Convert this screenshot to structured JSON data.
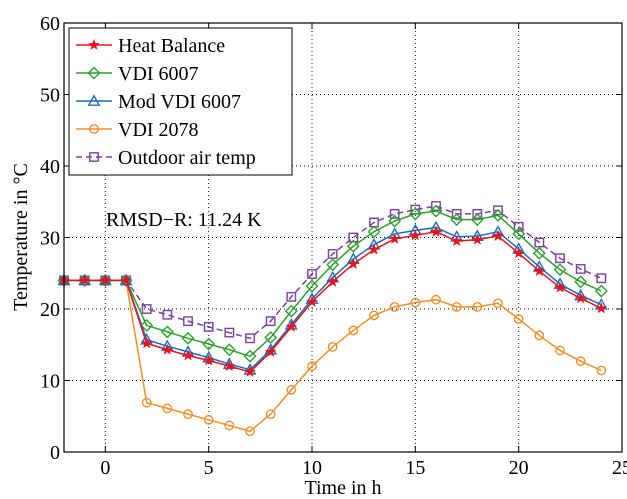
{
  "chart_data": {
    "type": "line",
    "xlabel": "Time in h",
    "ylabel": "Temperature in °C",
    "xlim": [
      -2,
      25
    ],
    "ylim": [
      0,
      60
    ],
    "xticks": [
      0,
      5,
      10,
      15,
      20,
      25
    ],
    "yticks": [
      0,
      10,
      20,
      30,
      40,
      50,
      60
    ],
    "grid": "dotted, horizontal and vertical",
    "legend_position": "top-left",
    "annotation": "RMSD−R: 11.24 K",
    "x": [
      -2,
      -1,
      0,
      1,
      2,
      3,
      4,
      5,
      6,
      7,
      8,
      9,
      10,
      11,
      12,
      13,
      14,
      15,
      16,
      17,
      18,
      19,
      20,
      21,
      22,
      23,
      24
    ],
    "series": [
      {
        "name": "Heat Balance",
        "color": "#e8141b",
        "marker": "star",
        "dashed": false,
        "values": [
          24,
          24,
          24,
          24,
          15.2,
          14.3,
          13.5,
          12.8,
          12.0,
          11.2,
          14.0,
          17.5,
          21.0,
          23.8,
          26.3,
          28.3,
          29.8,
          30.3,
          30.8,
          29.5,
          29.7,
          30.2,
          27.8,
          25.3,
          23.0,
          21.5,
          20.1
        ]
      },
      {
        "name": "VDI 6007",
        "color": "#2ca02c",
        "marker": "diamond",
        "dashed": false,
        "values": [
          24,
          24,
          24,
          24,
          17.7,
          16.8,
          15.9,
          15.1,
          14.3,
          13.4,
          16.0,
          19.7,
          23.2,
          26.2,
          28.8,
          30.8,
          32.3,
          33.3,
          33.7,
          32.5,
          32.5,
          33.1,
          30.5,
          27.8,
          25.5,
          23.8,
          22.5
        ]
      },
      {
        "name": "Mod VDI 6007",
        "color": "#1f6bbf",
        "marker": "triangle",
        "dashed": false,
        "values": [
          24,
          24,
          24,
          24,
          15.7,
          14.8,
          14.0,
          13.2,
          12.3,
          11.5,
          14.3,
          17.8,
          21.4,
          24.4,
          27.0,
          29.0,
          30.5,
          31.0,
          31.4,
          30.1,
          30.2,
          30.8,
          28.4,
          25.9,
          23.5,
          21.9,
          20.6
        ]
      },
      {
        "name": "VDI 2078",
        "color": "#f28e2b",
        "marker": "circle",
        "dashed": false,
        "values": [
          24,
          24,
          24,
          24,
          6.9,
          6.1,
          5.3,
          4.5,
          3.7,
          2.9,
          5.3,
          8.7,
          12.0,
          14.7,
          17.0,
          19.1,
          20.3,
          20.9,
          21.3,
          20.3,
          20.3,
          20.8,
          18.6,
          16.3,
          14.2,
          12.7,
          11.4
        ]
      },
      {
        "name": "Outdoor air temp",
        "color": "#7b3fa0",
        "marker": "square",
        "dashed": true,
        "values": [
          24,
          24,
          24,
          24,
          20.0,
          19.2,
          18.3,
          17.5,
          16.7,
          15.9,
          18.3,
          21.7,
          24.9,
          27.7,
          30.0,
          32.1,
          33.3,
          33.9,
          34.4,
          33.3,
          33.3,
          33.8,
          31.5,
          29.3,
          27.1,
          25.6,
          24.3
        ]
      }
    ]
  }
}
